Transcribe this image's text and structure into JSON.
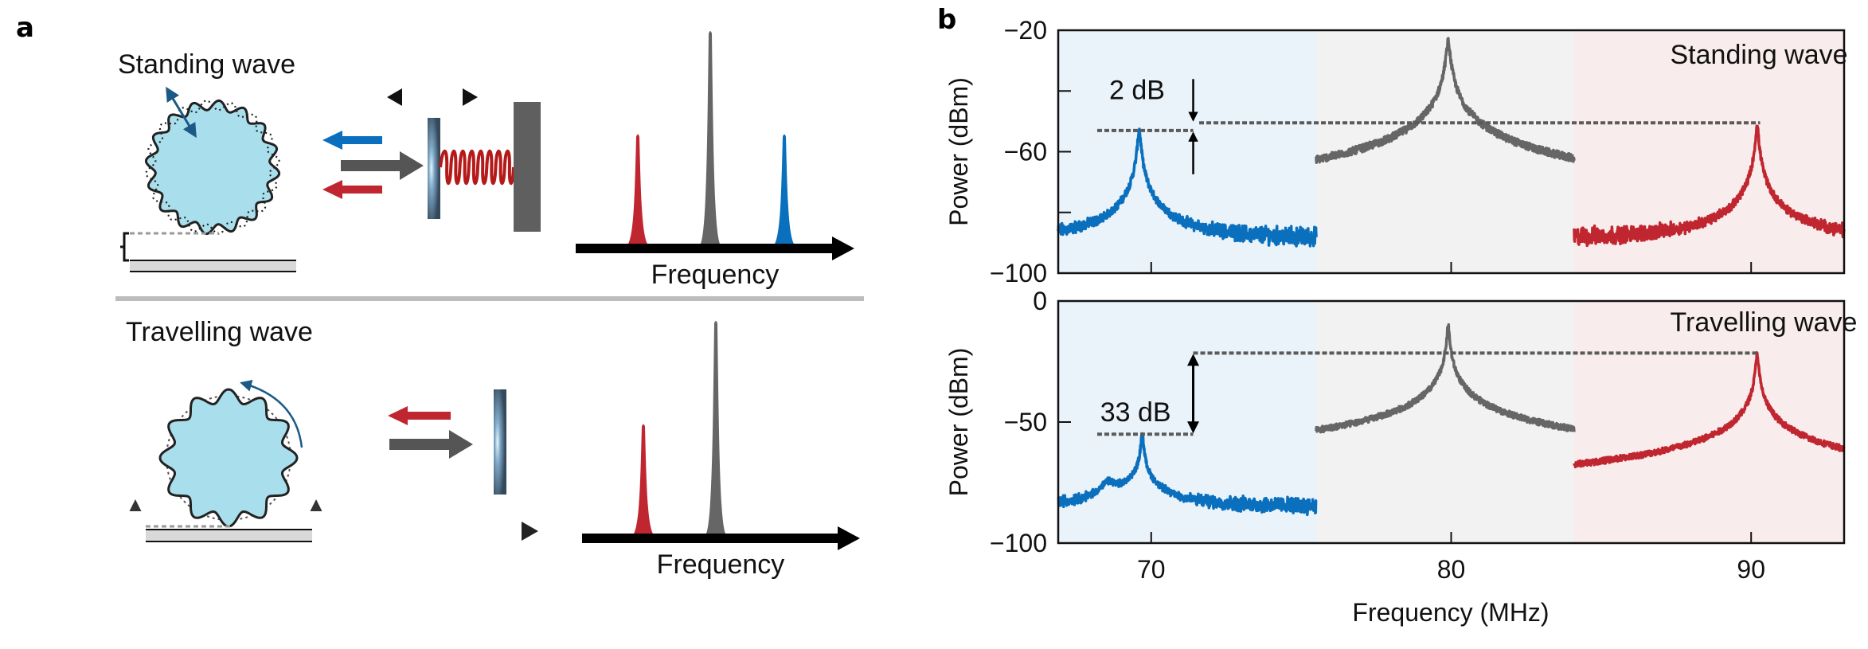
{
  "panels": {
    "a": {
      "letter": "a",
      "standing": {
        "title": "Standing wave",
        "spectrum_label": "Frequency",
        "arrows": [
          "blue-left",
          "gray-right",
          "red-left"
        ],
        "spectrum_peaks": [
          {
            "color": "red",
            "relative_height": 0.52
          },
          {
            "color": "gray",
            "relative_height": 1.0
          },
          {
            "color": "blue",
            "relative_height": 0.52
          }
        ]
      },
      "travelling": {
        "title": "Travelling wave",
        "spectrum_label": "Frequency",
        "arrows": [
          "red-left",
          "gray-right"
        ],
        "spectrum_peaks": [
          {
            "color": "red",
            "relative_height": 0.52
          },
          {
            "color": "gray",
            "relative_height": 1.0
          }
        ]
      }
    },
    "b": {
      "letter": "b"
    }
  },
  "colors": {
    "blue": "#0a6fbd",
    "gray": "#666666",
    "red": "#c0262f",
    "blue_bg": "#eaf2fa",
    "gray_bg": "#f2f2f2",
    "red_bg": "#f9ecec",
    "disk": "#a9dfec",
    "dark_blue": "#1b5a86"
  },
  "chart_data": [
    {
      "type": "line",
      "title": "Standing wave",
      "xlabel": "Frequency (MHz)",
      "ylabel": "Power (dBm)",
      "xlim": [
        66.9,
        93.1
      ],
      "ylim": [
        -100,
        -20
      ],
      "yticks": [
        -100,
        -80,
        -60,
        -40,
        -20
      ],
      "ytick_labels": [
        "−100",
        "",
        "−60",
        "",
        "−20"
      ],
      "xticks": [
        70,
        80,
        90
      ],
      "xtick_labels": [
        "",
        "",
        ""
      ],
      "regions": [
        {
          "name": "blue",
          "from": 66.9,
          "to": 75.5
        },
        {
          "name": "gray",
          "from": 75.5,
          "to": 84.1
        },
        {
          "name": "red",
          "from": 84.1,
          "to": 93.1
        }
      ],
      "noise_floor": -89,
      "series": [
        {
          "name": "blue",
          "range": [
            66.9,
            75.5
          ],
          "peaks": [
            {
              "x": 69.6,
              "y": -52.8,
              "w": 0.04
            }
          ]
        },
        {
          "name": "gray",
          "range": [
            75.5,
            84.1
          ],
          "peaks": [
            {
              "x": 79.9,
              "y": -23.7,
              "w": 0.05
            },
            {
              "x": 81.4,
              "y": -84,
              "w": 0.15
            }
          ]
        },
        {
          "name": "red",
          "range": [
            84.1,
            93.1
          ],
          "peaks": [
            {
              "x": 90.2,
              "y": -51.5,
              "w": 0.04
            }
          ]
        }
      ],
      "annotation": {
        "text": "2 dB",
        "lower_level": -53,
        "upper_level": -50.5,
        "lower_from": 68.2,
        "lower_to": 71.4,
        "upper_from": 71.6,
        "upper_to": 90.3,
        "arrow_x": 71.4
      }
    },
    {
      "type": "line",
      "title": "Travelling wave",
      "xlabel": "Frequency (MHz)",
      "ylabel": "Power (dBm)",
      "xlim": [
        66.9,
        93.1
      ],
      "ylim": [
        -100,
        0
      ],
      "yticks": [
        -100,
        -50,
        0
      ],
      "ytick_labels": [
        "−100",
        "−50",
        "0"
      ],
      "xticks": [
        70,
        80,
        90
      ],
      "xtick_labels": [
        "70",
        "80",
        "90"
      ],
      "regions": [
        {
          "name": "blue",
          "from": 66.9,
          "to": 75.5
        },
        {
          "name": "gray",
          "from": 75.5,
          "to": 84.1
        },
        {
          "name": "red",
          "from": 84.1,
          "to": 93.1
        }
      ],
      "noise_floor": -85,
      "series": [
        {
          "name": "blue",
          "range": [
            66.9,
            75.5
          ],
          "peaks": [
            {
              "x": 69.7,
              "y": -54.3,
              "w": 0.03
            },
            {
              "x": 69.6,
              "y": -73,
              "w": 0.35
            },
            {
              "x": 68.6,
              "y": -76,
              "w": 0.25
            }
          ]
        },
        {
          "name": "gray",
          "range": [
            75.5,
            84.1
          ],
          "peaks": [
            {
              "x": 79.9,
              "y": -10,
              "w": 0.03
            },
            {
              "x": 79.7,
              "y": -53.3,
              "w": 0.04
            },
            {
              "x": 80.1,
              "y": -53.3,
              "w": 0.04
            },
            {
              "x": 79.9,
              "y": -64,
              "w": 0.25
            },
            {
              "x": 77.8,
              "y": -76,
              "w": 0.25
            },
            {
              "x": 82.0,
              "y": -76,
              "w": 0.25
            }
          ]
        },
        {
          "name": "red",
          "range": [
            84.1,
            93.1
          ],
          "peaks": [
            {
              "x": 90.2,
              "y": -21.4,
              "w": 0.03
            },
            {
              "x": 90.1,
              "y": -64,
              "w": 0.3
            },
            {
              "x": 91.1,
              "y": -72,
              "w": 0.15
            },
            {
              "x": 85.9,
              "y": -78,
              "w": 0.03
            }
          ]
        }
      ],
      "annotation": {
        "text": "33 dB",
        "lower_level": -55,
        "upper_level": -21.5,
        "lower_from": 68.2,
        "lower_to": 71.4,
        "upper_from": 71.4,
        "upper_to": 90.2,
        "arrow_x": 71.4
      }
    }
  ]
}
